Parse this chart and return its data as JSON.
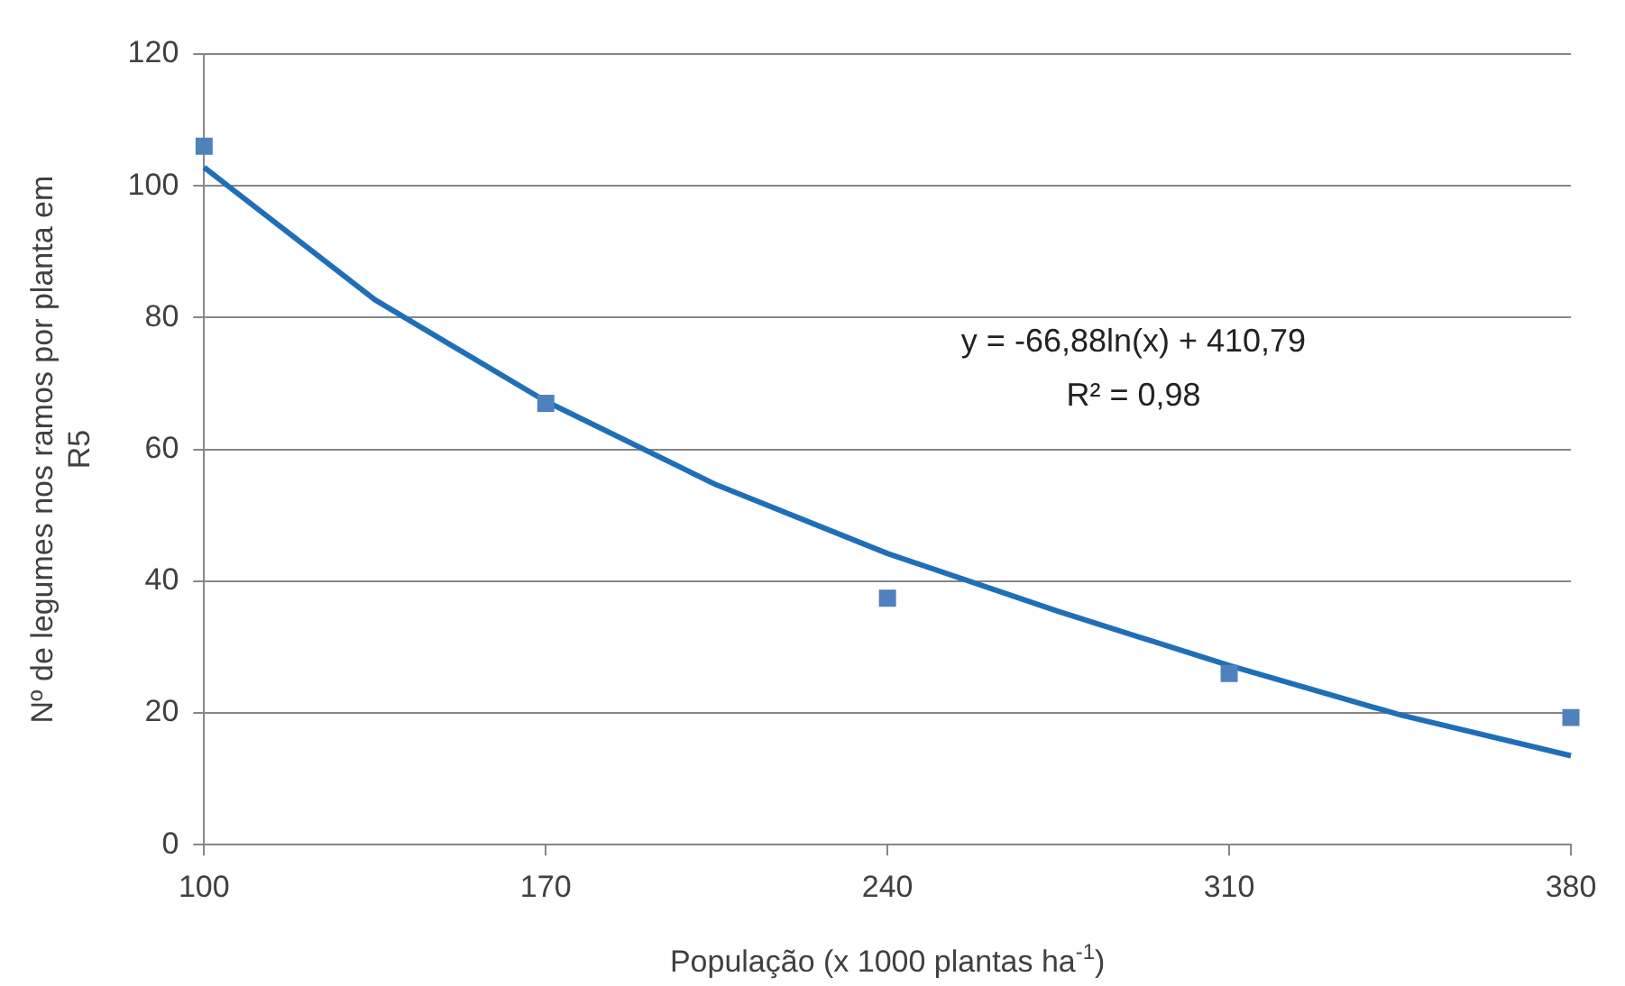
{
  "chart_data": {
    "type": "scatter",
    "xlabel": "População (x 1000 plantas ha$^{-1}$)",
    "ylabel": "Nº de legumes nos ramos por planta em R5",
    "x": [
      100,
      170,
      240,
      310,
      380
    ],
    "series": [
      {
        "color": "#4f81bd",
        "marker": "square",
        "values": [
          106,
          67,
          37.4,
          26,
          19.3
        ]
      },
      {
        "type": "line",
        "color": "#1f6fb8",
        "marker": "none",
        "x": [
          100,
          135,
          170,
          205,
          240,
          275,
          310,
          345,
          380
        ],
        "values": [
          102.8,
          82.7,
          67.3,
          54.6,
          44.2,
          35.4,
          27.2,
          19.7,
          13.5
        ]
      }
    ],
    "xlim": [
      100,
      380
    ],
    "xticks": [
      100,
      170,
      240,
      310,
      380
    ],
    "ylim": [
      0,
      120
    ],
    "yticks": [
      0,
      20,
      40,
      60,
      80,
      100,
      120
    ],
    "grid": "y",
    "legend": false,
    "annotations": [
      "y = -66,88ln(x) + 410,79",
      "R² = 0,98"
    ]
  }
}
